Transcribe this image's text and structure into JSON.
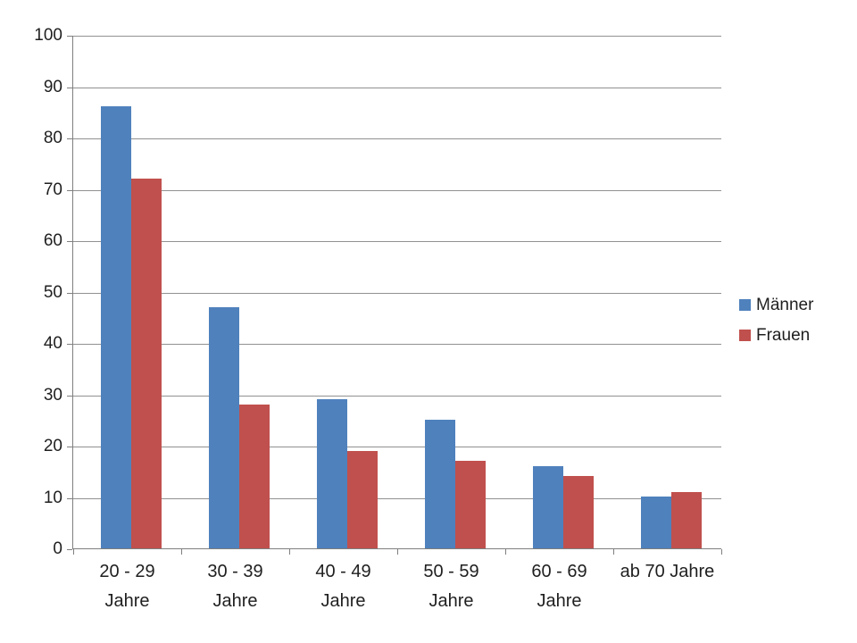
{
  "chart_data": {
    "type": "bar",
    "categories": [
      "20 - 29 Jahre",
      "30 - 39 Jahre",
      "40 - 49 Jahre",
      "50 - 59 Jahre",
      "60 - 69 Jahre",
      "ab 70 Jahre"
    ],
    "tick_label_lines": [
      [
        "20 - 29",
        "Jahre"
      ],
      [
        "30 - 39",
        "Jahre"
      ],
      [
        "40 - 49",
        "Jahre"
      ],
      [
        "50 - 59",
        "Jahre"
      ],
      [
        "60 - 69",
        "Jahre"
      ],
      [
        "ab 70 Jahre"
      ]
    ],
    "series": [
      {
        "name": "Männer",
        "color": "#4F81BD",
        "values": [
          86,
          47,
          29,
          25,
          16,
          10
        ]
      },
      {
        "name": "Frauen",
        "color": "#C0504D",
        "values": [
          72,
          28,
          19,
          17,
          14,
          11
        ]
      }
    ],
    "yticks": [
      0,
      10,
      20,
      30,
      40,
      50,
      60,
      70,
      80,
      90,
      100
    ],
    "ylim": [
      0,
      100
    ],
    "grid": true,
    "legend_position": "right"
  },
  "style": {
    "grid_color": "#919191",
    "axis_color": "#7f7f7f",
    "text_color": "#1f1f1f",
    "background": "#ffffff"
  }
}
